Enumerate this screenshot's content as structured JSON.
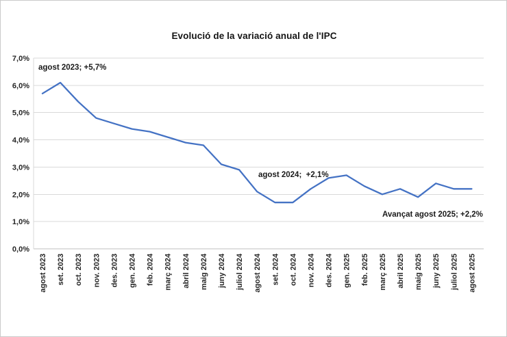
{
  "title": "Evolució de la variació anual de l'IPC",
  "annotations": {
    "agost_2023": "agost 2023; +5,7%",
    "agost_2024": "agost 2024;  +2,1%",
    "avancat_agost_2025": "Avançat agost 2025; +2,2%"
  },
  "chart_data": {
    "type": "line",
    "title": "Evolució de la variació anual de l'IPC",
    "categories": [
      "agost 2023",
      "set. 2023",
      "oct. 2023",
      "nov. 2023",
      "des. 2023",
      "gen. 2024",
      "feb. 2024",
      "març 2024",
      "abril 2024",
      "maig 2024",
      "juny 2024",
      "juliol 2024",
      "agost 2024",
      "set. 2024",
      "oct. 2024",
      "nov. 2024",
      "des. 2024",
      "gen. 2025",
      "feb. 2025",
      "març 2025",
      "abril 2025",
      "maig 2025",
      "juny 2025",
      "juliol 2025",
      "agost 2025"
    ],
    "values": [
      5.7,
      6.1,
      5.4,
      4.8,
      4.6,
      4.4,
      4.3,
      4.1,
      3.9,
      3.8,
      3.1,
      2.9,
      2.1,
      1.7,
      1.7,
      2.2,
      2.6,
      2.7,
      2.3,
      2.0,
      2.2,
      1.9,
      2.4,
      2.2,
      2.2
    ],
    "xlabel": "",
    "ylabel": "",
    "ylim": [
      0,
      7
    ],
    "ytick_labels": [
      "0,0%",
      "1,0%",
      "2,0%",
      "3,0%",
      "4,0%",
      "5,0%",
      "6,0%",
      "7,0%"
    ],
    "grid": true,
    "legend": "none",
    "line_color": "#4472C4",
    "grid_color": "#d9d9d9",
    "annotations": [
      {
        "label": "agost 2023; +5,7%",
        "point": "agost 2023",
        "value": 5.7
      },
      {
        "label": "agost 2024;  +2,1%",
        "point": "agost 2024",
        "value": 2.1
      },
      {
        "label": "Avançat agost 2025; +2,2%",
        "point": "agost 2025",
        "value": 2.2
      }
    ]
  }
}
